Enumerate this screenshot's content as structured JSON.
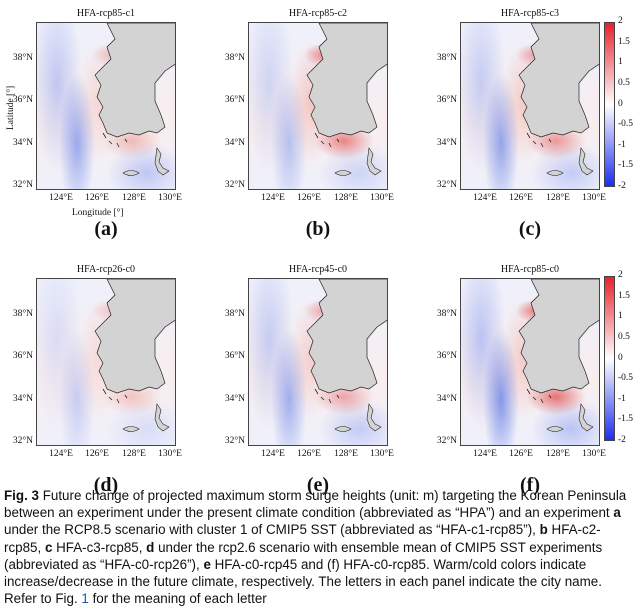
{
  "panels": [
    {
      "title": "HFA-rcp85-c1",
      "letter": "(a)"
    },
    {
      "title": "HFA-rcp85-c2",
      "letter": "(b)"
    },
    {
      "title": "HFA-rcp85-c3",
      "letter": "(c)"
    },
    {
      "title": "HFA-rcp26-c0",
      "letter": "(d)"
    },
    {
      "title": "HFA-rcp45-c0",
      "letter": "(e)"
    },
    {
      "title": "HFA-rcp85-c0",
      "letter": "(f)"
    }
  ],
  "y_ticks": [
    "38°N",
    "36°N",
    "34°N",
    "32°N"
  ],
  "x_ticks": [
    "124°E",
    "126°E",
    "128°E",
    "130°E"
  ],
  "axis": {
    "ylabel": "Latitude [°]",
    "xlabel": "Longitude [°]"
  },
  "colorbar": {
    "ticks": [
      "2",
      "1.5",
      "1",
      "0.5",
      "0",
      "-0.5",
      "-1",
      "-1.5",
      "-2"
    ],
    "colors": {
      "max": "#e8202a",
      "mid": "#ffffff",
      "min": "#1c2ef0"
    }
  },
  "caption": {
    "fig_label": "Fig. 3",
    "text1": "Future change of projected maximum storm surge heights (unit: m) targeting the Korean Peninsula between an experiment under the present climate condition (abbreviated as “HPA”) and an experiment ",
    "a": "a",
    "text2": " under the RCP8.5 scenario with cluster 1 of CMIP5 SST (abbreviated as “HFA-c1-rcp85”), ",
    "b": "b",
    "text3": " HFA-c2-rcp85, ",
    "c": "c",
    "text4": " HFA-c3-rcp85, ",
    "d": "d",
    "text5": " under the rcp2.6 scenario with ensemble mean of CMIP5 SST experiments (abbreviated as “HFA-c0-rcp26”), ",
    "e": "e",
    "text6": " HFA-c0-rcp45 and (f) HFA-c0-rcp85. Warm/cold colors indicate increase/decrease in the future climate, respectively. The letters in each panel indicate the city name. Refer to Fig. ",
    "ref": "1",
    "text7": " for the meaning of each letter"
  }
}
